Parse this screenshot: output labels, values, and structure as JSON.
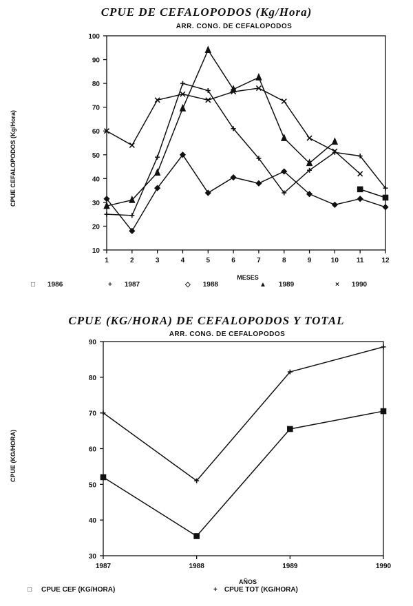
{
  "chart_data": [
    {
      "type": "line",
      "title": "CPUE DE CEFALOPODOS (Kg/Hora)",
      "subtitle": "ARR. CONG. DE CEFALOPODOS",
      "xlabel": "MESES",
      "ylabel": "CPUE CEFALOPODOS (Kg/Hora)",
      "x": [
        1,
        2,
        3,
        4,
        5,
        6,
        7,
        8,
        9,
        10,
        11,
        12
      ],
      "ylim": [
        10,
        100
      ],
      "yticks": [
        10,
        20,
        30,
        40,
        50,
        60,
        70,
        80,
        90,
        100
      ],
      "grid": false,
      "legend_position": "bottom",
      "series": [
        {
          "name": "1986",
          "marker": "square",
          "values": [
            null,
            null,
            null,
            null,
            null,
            null,
            null,
            null,
            null,
            null,
            35.5,
            32
          ]
        },
        {
          "name": "1987",
          "marker": "plus",
          "values": [
            25,
            24.5,
            49,
            80,
            77,
            61,
            48.5,
            34,
            43.5,
            51,
            49.5,
            36
          ]
        },
        {
          "name": "1988",
          "marker": "diamond",
          "values": [
            31.5,
            18,
            36,
            50,
            34,
            40.5,
            38,
            43,
            33.5,
            29,
            31.5,
            28
          ]
        },
        {
          "name": "1989",
          "marker": "triangle",
          "values": [
            28.5,
            31,
            42.5,
            69.5,
            94,
            77.5,
            82.5,
            57,
            46.5,
            55.5,
            null,
            null
          ]
        },
        {
          "name": "1990",
          "marker": "x",
          "values": [
            60,
            54,
            73,
            75.5,
            73,
            76.5,
            78,
            72.5,
            57,
            51.5,
            42,
            null
          ]
        }
      ]
    },
    {
      "type": "line",
      "title": "CPUE (KG/HORA) DE CEFALOPODOS Y TOTAL",
      "subtitle": "ARR. CONG. DE CEFALOPODOS",
      "xlabel": "AÑOS",
      "ylabel": "CPUE (KG/HORA)",
      "categories": [
        "1987",
        "1988",
        "1989",
        "1990"
      ],
      "ylim": [
        30,
        90
      ],
      "yticks": [
        30,
        40,
        50,
        60,
        70,
        80,
        90
      ],
      "grid": false,
      "legend_position": "bottom",
      "series": [
        {
          "name": "CPUE CEF (KG/HORA)",
          "marker": "square",
          "values": [
            52,
            35.5,
            65.5,
            70.5
          ]
        },
        {
          "name": "CPUE TOT (KG/HORA)",
          "marker": "plus",
          "values": [
            70,
            51,
            81.5,
            88.5
          ]
        }
      ]
    }
  ],
  "chart1": {
    "title": "CPUE DE CEFALOPODOS (Kg/Hora)",
    "subtitle": "ARR. CONG. DE CEFALOPODOS",
    "xlabel": "MESES",
    "ylabel": "CPUE CEFALOPODOS (Kg/Hora)",
    "legend": [
      {
        "symbol": "□",
        "label": "1986"
      },
      {
        "symbol": "+",
        "label": "1987"
      },
      {
        "symbol": "◇",
        "label": "1988"
      },
      {
        "symbol": "▲",
        "label": "1989"
      },
      {
        "symbol": "×",
        "label": "1990"
      }
    ]
  },
  "chart2": {
    "title": "CPUE (KG/HORA) DE CEFALOPODOS Y TOTAL",
    "subtitle": "ARR. CONG. DE CEFALOPODOS",
    "xlabel": "AÑOS",
    "ylabel": "CPUE (KG/HORA)",
    "legend": [
      {
        "symbol": "□",
        "label": "CPUE CEF (KG/HORA)"
      },
      {
        "symbol": "+",
        "label": "CPUE TOT (KG/HORA)"
      }
    ]
  },
  "colors": {
    "ink": "#111111",
    "background": "#ffffff"
  }
}
